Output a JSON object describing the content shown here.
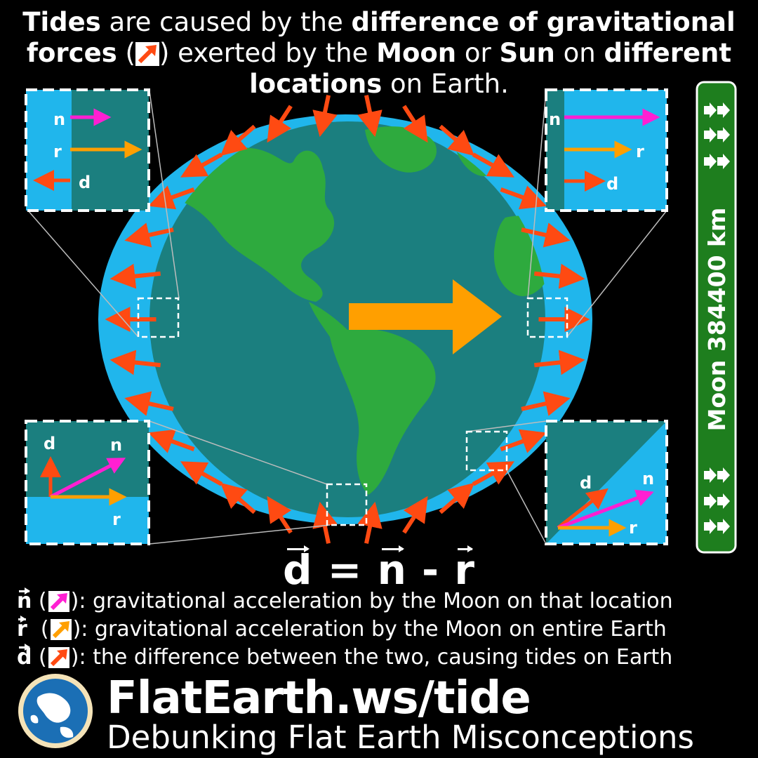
{
  "title": {
    "segments": [
      {
        "text": "Tides",
        "bold": true
      },
      {
        "text": " are caused by the ",
        "bold": false
      },
      {
        "text": "difference of gravitational forces",
        "bold": true
      },
      {
        "text": " (",
        "bold": false
      },
      {
        "text": ") exerted by the ",
        "bold": false
      },
      {
        "text": "Moon",
        "bold": true
      },
      {
        "text": " or ",
        "bold": false
      },
      {
        "text": "Sun",
        "bold": true
      },
      {
        "text": " on ",
        "bold": false
      },
      {
        "text": "different locations",
        "bold": true
      },
      {
        "text": " on Earth.",
        "bold": false
      }
    ],
    "icon": "red-arrow-icon"
  },
  "moon_sign": {
    "label": "Moon 384400 km",
    "color": "#1e7e1e"
  },
  "insets": [
    {
      "position": "top-left",
      "labels": {
        "n": "n",
        "r": "r",
        "d": "d"
      }
    },
    {
      "position": "top-right",
      "labels": {
        "n": "n",
        "r": "r",
        "d": "d"
      }
    },
    {
      "position": "bottom-left",
      "labels": {
        "n": "n",
        "r": "r",
        "d": "d"
      }
    },
    {
      "position": "bottom-right",
      "labels": {
        "n": "n",
        "r": "r",
        "d": "d"
      }
    }
  ],
  "formula": {
    "d": "d",
    "eq": " = ",
    "n": "n",
    "minus": " - ",
    "r": "r"
  },
  "legend": [
    {
      "symbol": "n",
      "pre": " (",
      "post": "): gravitational acceleration by the Moon on that location",
      "color": "#ff1fd2",
      "icon": "magenta-arrow-icon"
    },
    {
      "symbol": "r",
      "pre": "  (",
      "post": "): gravitational acceleration by the Moon on entire Earth",
      "color": "#ff9f00",
      "icon": "orange-arrow-icon"
    },
    {
      "symbol": "d",
      "pre": " (",
      "post": "): the difference between the two, causing tides on Earth",
      "color": "#ff4a12",
      "icon": "red-arrow-icon"
    }
  ],
  "brand": {
    "url": "FlatEarth.ws/tide",
    "tagline": "Debunking Flat Earth Misconceptions",
    "logo_icon": "globe-logo-icon"
  },
  "colors": {
    "ocean": "#1b7f7f",
    "land": "#2eaa3e",
    "tidal_bulge": "#20b6ec",
    "d_arrow": "#ff4a12",
    "n_arrow": "#ff1fd2",
    "r_arrow": "#ff9f00"
  }
}
